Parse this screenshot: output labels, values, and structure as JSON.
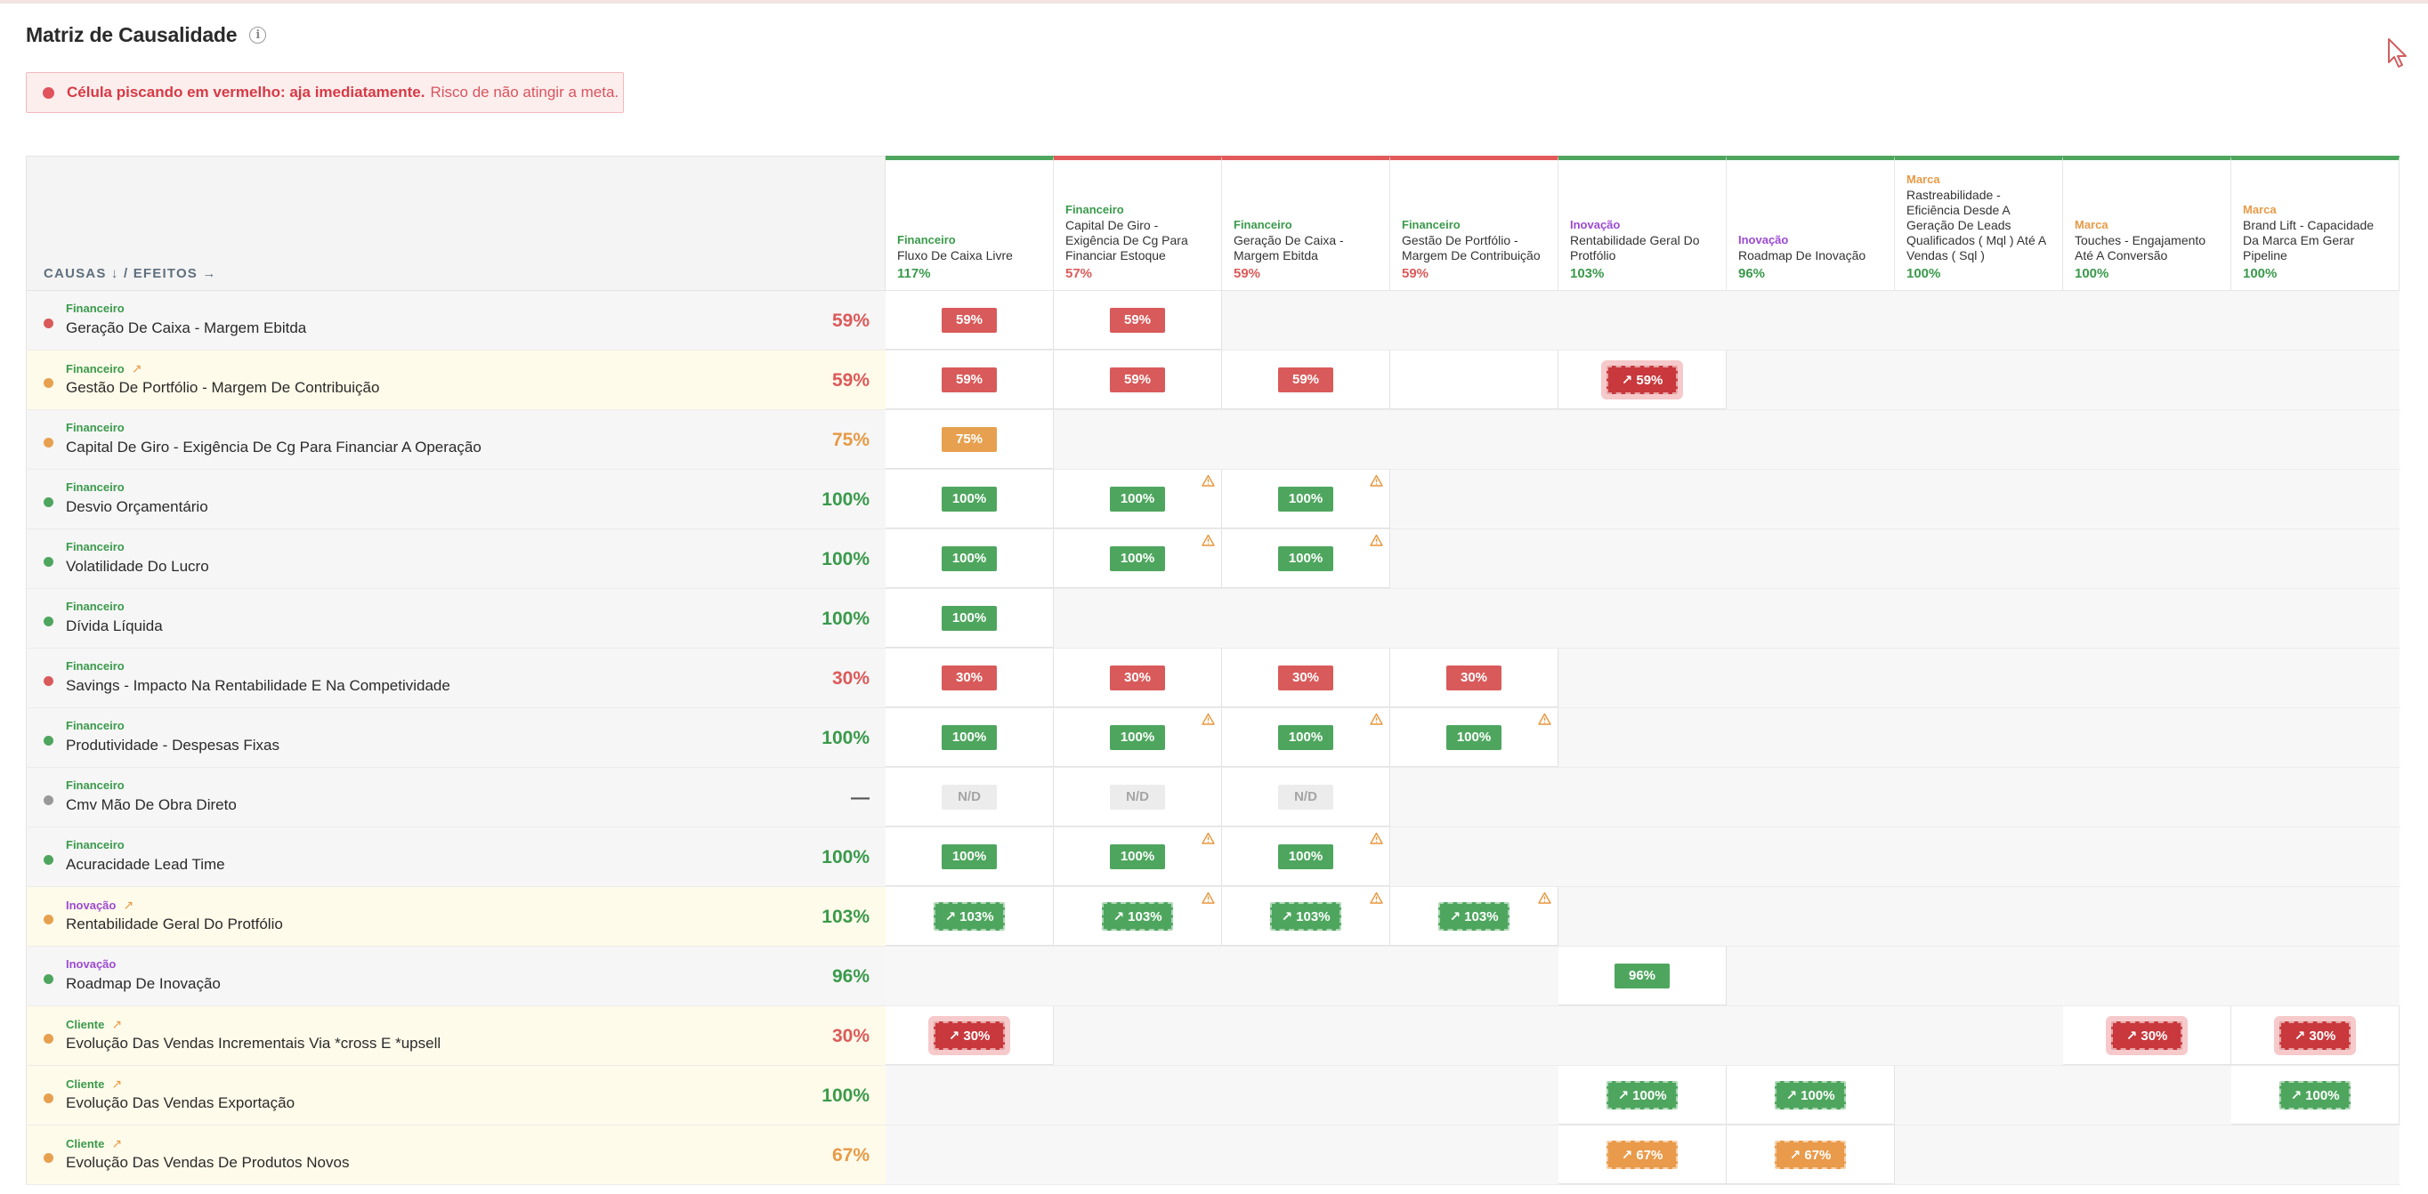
{
  "header": {
    "title": "Matriz de Causalidade",
    "info_icon": "info-icon"
  },
  "alert": {
    "strong": "Célula piscando em vermelho: aja imediatamente.",
    "text": "Risco de não atingir a meta.",
    "color": "#d63a45"
  },
  "matrix": {
    "corner_label": "CAUSAS ↓ / EFEITOS →",
    "columns": [
      {
        "category": "Financeiro",
        "cat_color": "green",
        "name": "Fluxo De Caixa Livre",
        "pct": "117%",
        "pct_color": "green",
        "border": "green"
      },
      {
        "category": "Financeiro",
        "cat_color": "green",
        "name": "Capital De Giro - Exigência De Cg Para Financiar Estoque",
        "pct": "57%",
        "pct_color": "red",
        "border": "red"
      },
      {
        "category": "Financeiro",
        "cat_color": "green",
        "name": "Geração De Caixa - Margem Ebitda",
        "pct": "59%",
        "pct_color": "red",
        "border": "red"
      },
      {
        "category": "Financeiro",
        "cat_color": "green",
        "name": "Gestão De Portfólio - Margem De Contribuição",
        "pct": "59%",
        "pct_color": "red",
        "border": "red"
      },
      {
        "category": "Inovação",
        "cat_color": "purple",
        "name": "Rentabilidade Geral Do Protfólio",
        "pct": "103%",
        "pct_color": "green",
        "border": "green"
      },
      {
        "category": "Inovação",
        "cat_color": "purple",
        "name": "Roadmap De Inovação",
        "pct": "96%",
        "pct_color": "green",
        "border": "green"
      },
      {
        "category": "Marca",
        "cat_color": "orange",
        "name": "Rastreabilidade - Eficiência Desde A Geração De Leads Qualificados ( Mql ) Até A Vendas ( Sql )",
        "pct": "100%",
        "pct_color": "green",
        "border": "green"
      },
      {
        "category": "Marca",
        "cat_color": "orange",
        "name": "Touches - Engajamento Até A Conversão",
        "pct": "100%",
        "pct_color": "green",
        "border": "green"
      },
      {
        "category": "Marca",
        "cat_color": "orange",
        "name": "Brand Lift - Capacidade Da Marca Em Gerar Pipeline",
        "pct": "100%",
        "pct_color": "green",
        "border": "green"
      }
    ],
    "rows": [
      {
        "category": "Financeiro",
        "cat_color": "green",
        "trend": false,
        "name": "Geração De Caixa - Margem Ebitda",
        "pct": "59%",
        "pct_color": "red",
        "dot": "red",
        "highlight": false,
        "cells": [
          {
            "v": "59%",
            "c": "red"
          },
          {
            "v": "59%",
            "c": "red"
          },
          null,
          null,
          null,
          null,
          null,
          null,
          null
        ]
      },
      {
        "category": "Financeiro",
        "cat_color": "green",
        "trend": true,
        "name": "Gestão De Portfólio - Margem De Contribuição",
        "pct": "59%",
        "pct_color": "red",
        "dot": "orange",
        "highlight": true,
        "cells": [
          {
            "v": "59%",
            "c": "red"
          },
          {
            "v": "59%",
            "c": "red"
          },
          {
            "v": "59%",
            "c": "red"
          },
          {
            "empty_white": true
          },
          {
            "v": "↗ 59%",
            "c": "red",
            "t": true
          },
          null,
          null,
          null,
          null
        ]
      },
      {
        "category": "Financeiro",
        "cat_color": "green",
        "trend": false,
        "name": "Capital De Giro - Exigência De Cg Para Financiar A Operação",
        "pct": "75%",
        "pct_color": "orange",
        "dot": "orange",
        "highlight": false,
        "cells": [
          {
            "v": "75%",
            "c": "orange"
          },
          null,
          null,
          null,
          null,
          null,
          null,
          null,
          null
        ]
      },
      {
        "category": "Financeiro",
        "cat_color": "green",
        "trend": false,
        "name": "Desvio Orçamentário",
        "pct": "100%",
        "pct_color": "green",
        "dot": "green",
        "highlight": false,
        "cells": [
          {
            "v": "100%",
            "c": "green"
          },
          {
            "v": "100%",
            "c": "green",
            "w": true
          },
          {
            "v": "100%",
            "c": "green",
            "w": true
          },
          null,
          null,
          null,
          null,
          null,
          null
        ]
      },
      {
        "category": "Financeiro",
        "cat_color": "green",
        "trend": false,
        "name": "Volatilidade Do Lucro",
        "pct": "100%",
        "pct_color": "green",
        "dot": "green",
        "highlight": false,
        "cells": [
          {
            "v": "100%",
            "c": "green"
          },
          {
            "v": "100%",
            "c": "green",
            "w": true
          },
          {
            "v": "100%",
            "c": "green",
            "w": true
          },
          null,
          null,
          null,
          null,
          null,
          null
        ]
      },
      {
        "category": "Financeiro",
        "cat_color": "green",
        "trend": false,
        "name": "Dívida Líquida",
        "pct": "100%",
        "pct_color": "green",
        "dot": "green",
        "highlight": false,
        "cells": [
          {
            "v": "100%",
            "c": "green"
          },
          null,
          null,
          null,
          null,
          null,
          null,
          null,
          null
        ]
      },
      {
        "category": "Financeiro",
        "cat_color": "green",
        "trend": false,
        "name": "Savings - Impacto Na Rentabilidade E Na Competividade",
        "pct": "30%",
        "pct_color": "red",
        "dot": "red",
        "highlight": false,
        "cells": [
          {
            "v": "30%",
            "c": "red"
          },
          {
            "v": "30%",
            "c": "red"
          },
          {
            "v": "30%",
            "c": "red"
          },
          {
            "v": "30%",
            "c": "red"
          },
          null,
          null,
          null,
          null,
          null
        ]
      },
      {
        "category": "Financeiro",
        "cat_color": "green",
        "trend": false,
        "name": "Produtividade - Despesas Fixas",
        "pct": "100%",
        "pct_color": "green",
        "dot": "green",
        "highlight": false,
        "cells": [
          {
            "v": "100%",
            "c": "green"
          },
          {
            "v": "100%",
            "c": "green",
            "w": true
          },
          {
            "v": "100%",
            "c": "green",
            "w": true
          },
          {
            "v": "100%",
            "c": "green",
            "w": true
          },
          null,
          null,
          null,
          null,
          null
        ]
      },
      {
        "category": "Financeiro",
        "cat_color": "green",
        "trend": false,
        "name": "Cmv Mão De Obra Direto",
        "pct": "—",
        "pct_color": "gray",
        "dot": "gray",
        "highlight": false,
        "cells": [
          {
            "v": "N/D",
            "c": "nd"
          },
          {
            "v": "N/D",
            "c": "nd"
          },
          {
            "v": "N/D",
            "c": "nd"
          },
          null,
          null,
          null,
          null,
          null,
          null
        ]
      },
      {
        "category": "Financeiro",
        "cat_color": "green",
        "trend": false,
        "name": "Acuracidade Lead Time",
        "pct": "100%",
        "pct_color": "green",
        "dot": "green",
        "highlight": false,
        "cells": [
          {
            "v": "100%",
            "c": "green"
          },
          {
            "v": "100%",
            "c": "green",
            "w": true
          },
          {
            "v": "100%",
            "c": "green",
            "w": true
          },
          null,
          null,
          null,
          null,
          null,
          null
        ]
      },
      {
        "category": "Inovação",
        "cat_color": "purple",
        "trend": true,
        "name": "Rentabilidade Geral Do Protfólio",
        "pct": "103%",
        "pct_color": "green",
        "dot": "orange",
        "highlight": true,
        "cells": [
          {
            "v": "↗ 103%",
            "c": "green",
            "t": true
          },
          {
            "v": "↗ 103%",
            "c": "green",
            "t": true,
            "w": true
          },
          {
            "v": "↗ 103%",
            "c": "green",
            "t": true,
            "w": true
          },
          {
            "v": "↗ 103%",
            "c": "green",
            "t": true,
            "w": true
          },
          null,
          null,
          null,
          null,
          null
        ]
      },
      {
        "category": "Inovação",
        "cat_color": "purple",
        "trend": false,
        "name": "Roadmap De Inovação",
        "pct": "96%",
        "pct_color": "green",
        "dot": "green",
        "highlight": false,
        "cells": [
          null,
          null,
          null,
          null,
          {
            "v": "96%",
            "c": "green"
          },
          null,
          null,
          null,
          null
        ]
      },
      {
        "category": "Cliente",
        "cat_color": "green",
        "trend": true,
        "name": "Evolução Das Vendas Incrementais Via *cross E *upsell",
        "pct": "30%",
        "pct_color": "red",
        "dot": "orange",
        "highlight": true,
        "cells": [
          {
            "v": "↗ 30%",
            "c": "red",
            "t": true
          },
          null,
          null,
          null,
          null,
          null,
          null,
          {
            "v": "↗ 30%",
            "c": "red",
            "t": true
          },
          {
            "v": "↗ 30%",
            "c": "red",
            "t": true
          }
        ]
      },
      {
        "category": "Cliente",
        "cat_color": "green",
        "trend": true,
        "name": "Evolução Das Vendas Exportação",
        "pct": "100%",
        "pct_color": "green",
        "dot": "orange",
        "highlight": true,
        "cells": [
          null,
          null,
          null,
          null,
          {
            "v": "↗ 100%",
            "c": "green",
            "t": true
          },
          {
            "v": "↗ 100%",
            "c": "green",
            "t": true
          },
          null,
          null,
          {
            "v": "↗ 100%",
            "c": "green",
            "t": true
          }
        ]
      },
      {
        "category": "Cliente",
        "cat_color": "green",
        "trend": true,
        "name": "Evolução Das Vendas De Produtos Novos",
        "pct": "67%",
        "pct_color": "orange",
        "dot": "orange",
        "highlight": true,
        "cells": [
          null,
          null,
          null,
          null,
          {
            "v": "↗ 67%",
            "c": "orange",
            "t": true
          },
          {
            "v": "↗ 67%",
            "c": "orange",
            "t": true
          },
          null,
          null,
          null
        ]
      }
    ],
    "trend_glyph": "↗",
    "colors": {
      "green": "#4ea65e",
      "red": "#d95a5a",
      "orange": "#e7a04f",
      "purple": "#9b4ad3",
      "gray": "#999999"
    }
  }
}
